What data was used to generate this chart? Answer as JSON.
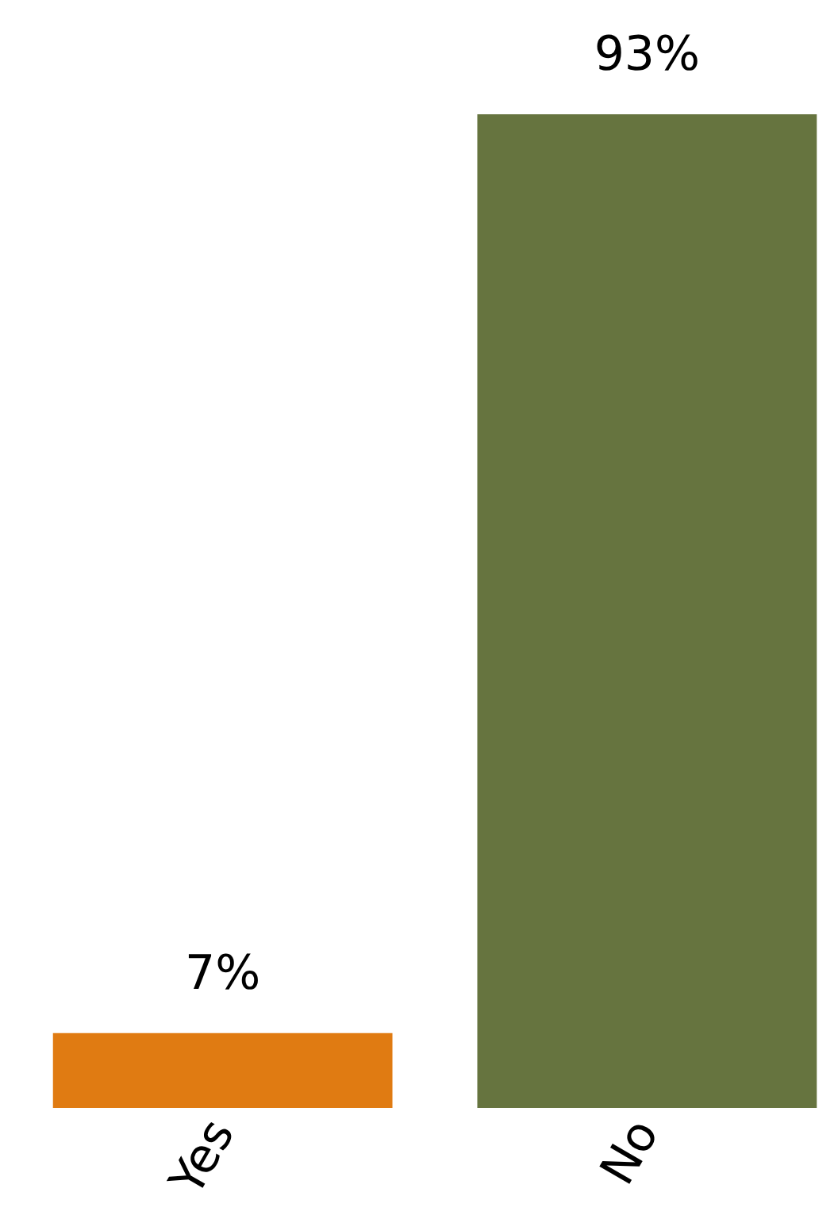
{
  "chart_data": {
    "type": "bar",
    "categories": [
      "Yes",
      "No"
    ],
    "values": [
      7,
      93
    ],
    "colors": [
      "#e07b12",
      "#66743f"
    ],
    "value_labels": [
      "7%",
      "93%"
    ],
    "grid": false,
    "legend": false
  }
}
